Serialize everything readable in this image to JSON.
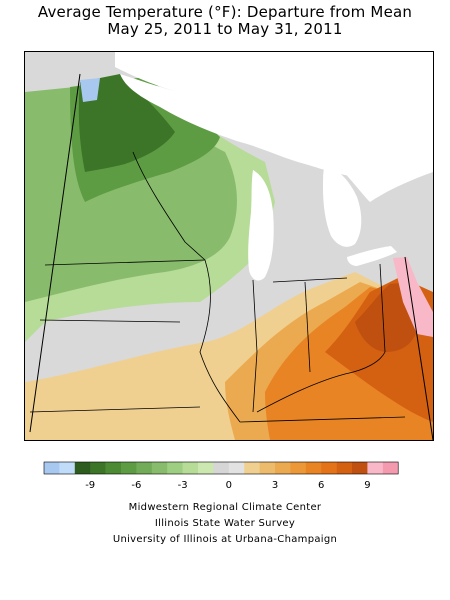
{
  "title": {
    "line1": "Average Temperature (°F): Departure from Mean",
    "line2": "May 25, 2011 to May 31, 2011"
  },
  "legend": {
    "colors": [
      "#a8c8f0",
      "#c0dcf8",
      "#2e5c1e",
      "#3c7428",
      "#4c8a34",
      "#5e9c44",
      "#72ac58",
      "#88bc6c",
      "#9ece82",
      "#b6dc98",
      "#cce8b0",
      "#d6d6d6",
      "#e2e2e2",
      "#f0d090",
      "#ecbc6c",
      "#ecaa50",
      "#ec9838",
      "#e88424",
      "#e47218",
      "#d46012",
      "#c05010",
      "#f8b8c8",
      "#f49aae"
    ],
    "tick_labels": [
      "-9",
      "-6",
      "-3",
      "0",
      "3",
      "6",
      "9"
    ],
    "tick_after_index": [
      3,
      6,
      9,
      12,
      15,
      18,
      21
    ]
  },
  "credits": [
    "Midwestern Regional Climate Center",
    "Illinois State Water Survey",
    "University of Illinois at Urbana-Champaign"
  ],
  "map_colors": {
    "dark_green": "#3c7428",
    "mid_green": "#5e9c44",
    "green": "#88bc6c",
    "light_green": "#b6dc98",
    "gray": "#d9d9d9",
    "tan": "#f0d090",
    "light_orange": "#ecaa50",
    "orange": "#e88424",
    "dark_orange": "#d46012",
    "deep_orange": "#c05010",
    "pink": "#f8b8c8",
    "light_blue": "#a8c8f0",
    "water": "#ffffff"
  }
}
